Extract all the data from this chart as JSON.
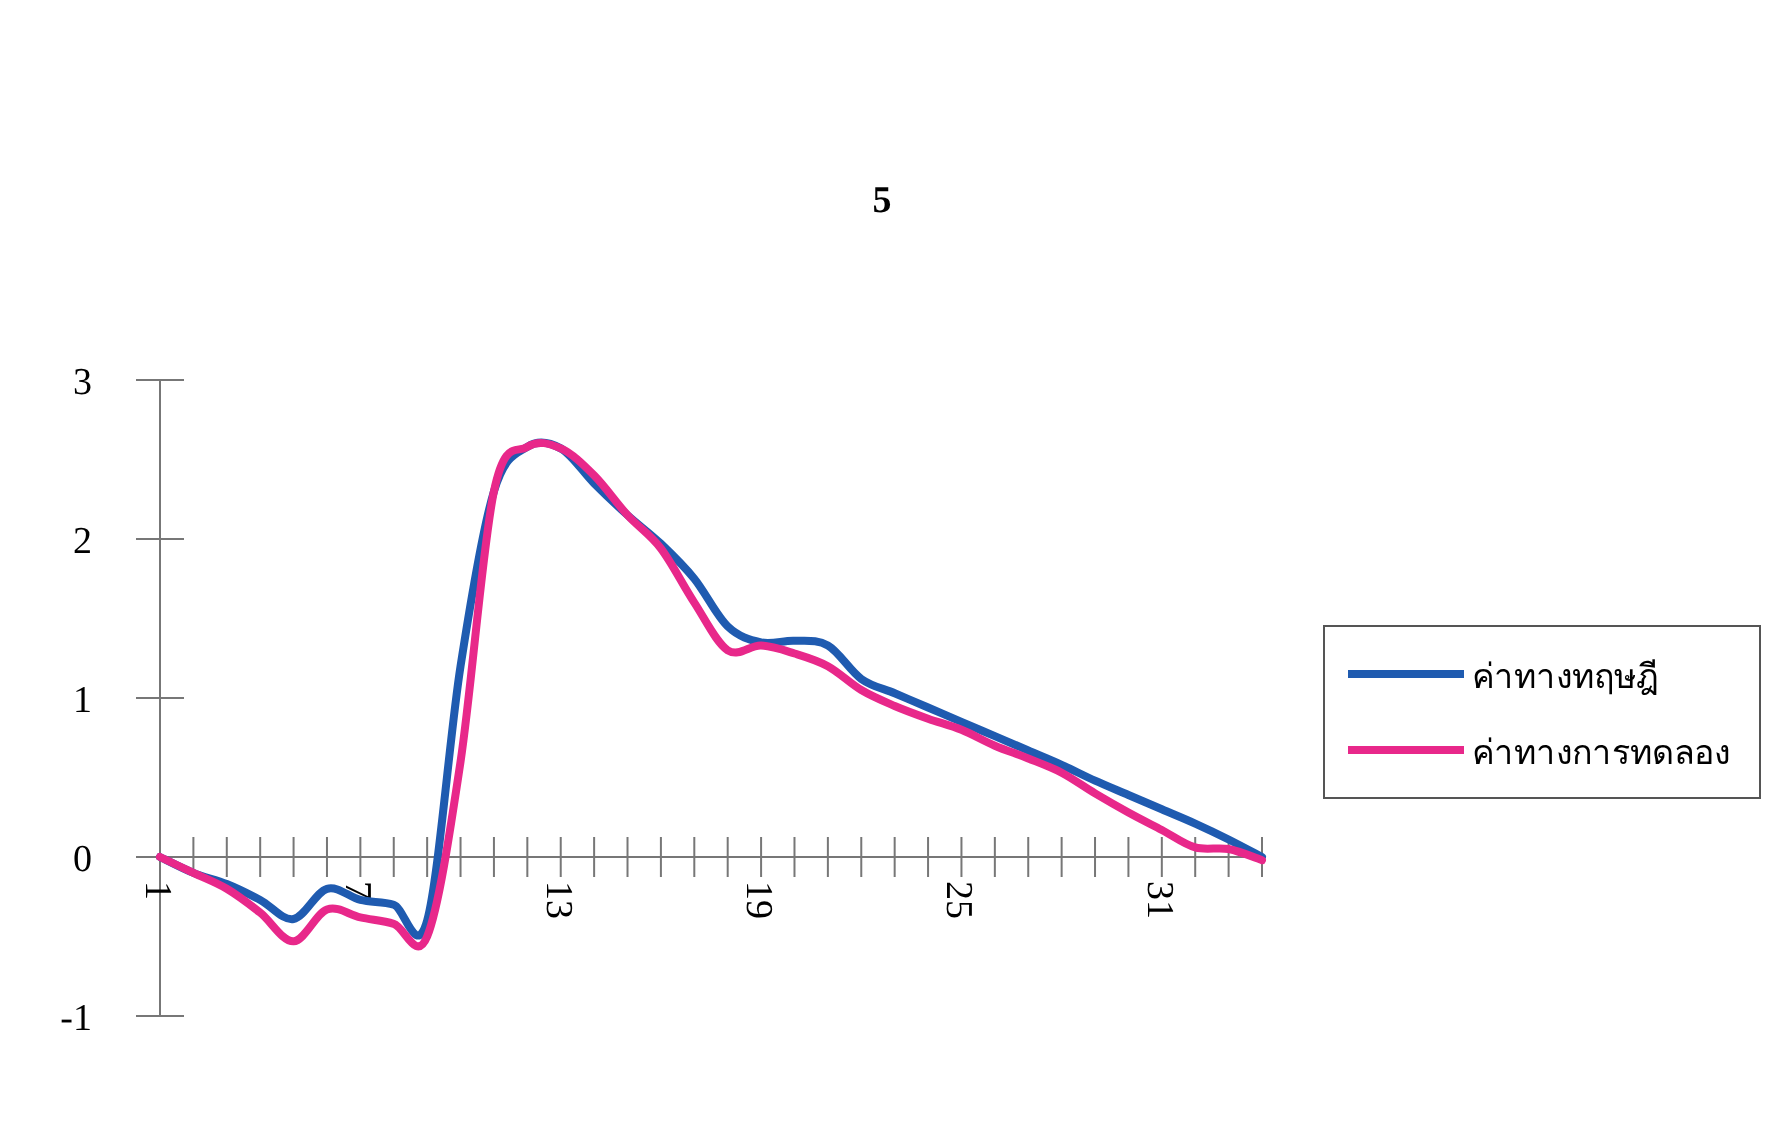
{
  "chart_data": {
    "type": "line",
    "title": "5",
    "categories": [
      "1",
      null,
      null,
      null,
      null,
      null,
      "7",
      null,
      null,
      null,
      null,
      null,
      "13",
      null,
      null,
      null,
      null,
      null,
      "19",
      null,
      null,
      null,
      null,
      null,
      "25",
      null,
      null,
      null,
      null,
      null,
      "31",
      null,
      null,
      null
    ],
    "series": [
      {
        "name": "ค่าทางทฤษฎี",
        "color": "#1f5bb0",
        "values": [
          0,
          -0.1,
          -0.17,
          -0.27,
          -0.39,
          -0.2,
          -0.27,
          -0.3,
          -0.4,
          1.2,
          2.3,
          2.58,
          2.57,
          2.35,
          2.15,
          1.97,
          1.75,
          1.45,
          1.35,
          1.36,
          1.33,
          1.12,
          1.03,
          0.94,
          0.85,
          0.76,
          0.67,
          0.58,
          0.48,
          0.39,
          0.3,
          0.21,
          0.11,
          0
        ]
      },
      {
        "name": "ค่าทางการทดลอง",
        "color": "#e8288a",
        "values": [
          0,
          -0.1,
          -0.2,
          -0.35,
          -0.53,
          -0.33,
          -0.38,
          -0.42,
          -0.5,
          0.6,
          2.3,
          2.58,
          2.57,
          2.4,
          2.15,
          1.94,
          1.6,
          1.3,
          1.33,
          1.28,
          1.2,
          1.05,
          0.95,
          0.87,
          0.8,
          0.7,
          0.62,
          0.53,
          0.4,
          0.28,
          0.17,
          0.06,
          0.05,
          -0.02
        ]
      }
    ],
    "ylim": [
      -1,
      3
    ],
    "yticks": [
      -1,
      0,
      1,
      2,
      3
    ],
    "legend": "right",
    "grid": false,
    "marker": "none",
    "line_style": "solid"
  }
}
